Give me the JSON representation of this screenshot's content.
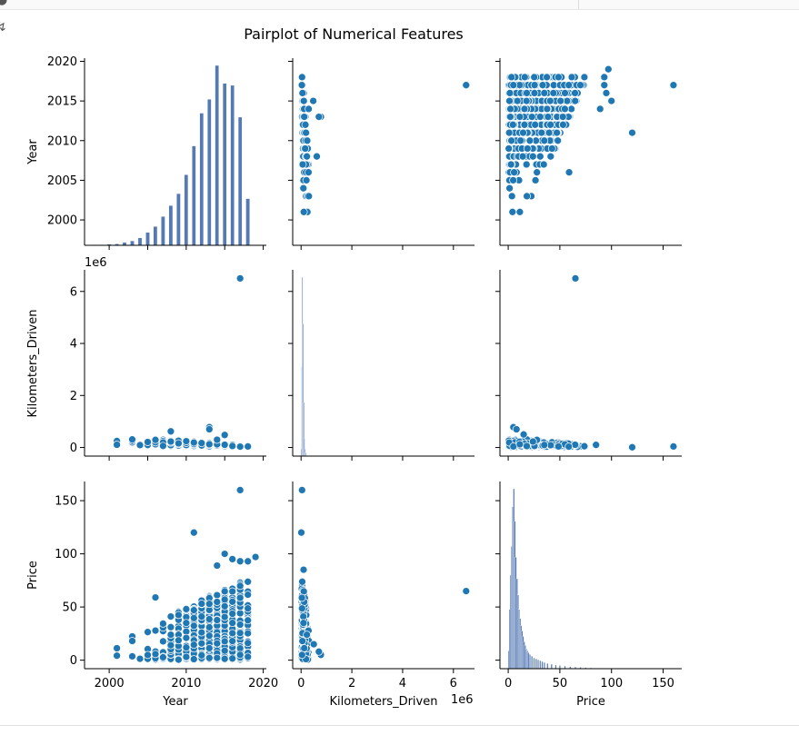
{
  "chart_data": {
    "type": "scatter",
    "title": "Pairplot of Numerical Features",
    "variables": [
      "Year",
      "Kilometers_Driven",
      "Price"
    ],
    "axis_labels": {
      "Year": "Year",
      "Kilometers_Driven": "Kilometers_Driven",
      "Price": "Price"
    },
    "ranges": {
      "Year": [
        1996.8,
        2020.4
      ],
      "Kilometers_Driven": [
        -330000,
        6830000
      ],
      "Price": [
        -8,
        168
      ]
    },
    "ticks": {
      "Year": [
        2000,
        2005,
        2010,
        2015,
        2020
      ],
      "Year_bottom": [
        2000,
        2010,
        2020
      ],
      "Kilometers_Driven": [
        0,
        2000000,
        4000000,
        6000000
      ],
      "Price": [
        0,
        50,
        100,
        150
      ]
    },
    "tick_labels": {
      "Year": [
        "2000",
        "2005",
        "2010",
        "2015",
        "2020"
      ],
      "Year_bottom": [
        "2000",
        "2010",
        "2020"
      ],
      "Kilometers_Driven": [
        "0",
        "2",
        "4",
        "6"
      ],
      "Price": [
        "0",
        "50",
        "100",
        "150"
      ]
    },
    "offset_text": "1e6",
    "color": "#1f77b4",
    "hist_color": "#4c72b0",
    "histograms": {
      "Year": {
        "bin_width": 0.5,
        "bins": [
          [
            1998,
            0.6
          ],
          [
            1999,
            0.7
          ],
          [
            2000,
            1.2
          ],
          [
            2001,
            1.5
          ],
          [
            2002,
            3.0
          ],
          [
            2003,
            4.5
          ],
          [
            2004,
            7.5
          ],
          [
            2005,
            13
          ],
          [
            2006,
            19
          ],
          [
            2007,
            29
          ],
          [
            2008,
            40
          ],
          [
            2009,
            52
          ],
          [
            2010,
            71
          ],
          [
            2011,
            100
          ],
          [
            2012,
            133
          ],
          [
            2013,
            147
          ],
          [
            2014,
            181
          ],
          [
            2015,
            163
          ],
          [
            2016,
            161
          ],
          [
            2017,
            129
          ],
          [
            2018,
            47
          ]
        ]
      },
      "Kilometers_Driven": {
        "bins": [
          [
            0,
            4
          ],
          [
            25000,
            50
          ],
          [
            50000,
            100
          ],
          [
            75000,
            74
          ],
          [
            100000,
            30
          ],
          [
            125000,
            10
          ],
          [
            150000,
            4
          ],
          [
            175000,
            2
          ]
        ]
      },
      "Price": {
        "bins": [
          [
            0.5,
            10
          ],
          [
            1.5,
            33
          ],
          [
            2.5,
            52
          ],
          [
            3.5,
            68
          ],
          [
            4.5,
            90
          ],
          [
            5.5,
            100
          ],
          [
            6.5,
            82
          ],
          [
            7.5,
            62
          ],
          [
            8.5,
            50
          ],
          [
            9.5,
            41
          ],
          [
            10.5,
            33
          ],
          [
            11.5,
            28
          ],
          [
            12.5,
            24
          ],
          [
            13.5,
            21
          ],
          [
            14.5,
            18
          ],
          [
            15.5,
            15
          ],
          [
            16.5,
            13
          ],
          [
            17.5,
            11
          ],
          [
            18.5,
            10
          ],
          [
            19.5,
            9
          ],
          [
            21,
            8
          ],
          [
            23,
            7
          ],
          [
            25,
            6
          ],
          [
            27,
            5.5
          ],
          [
            29,
            5
          ],
          [
            31,
            4.5
          ],
          [
            33,
            4
          ],
          [
            35,
            3.5
          ],
          [
            38,
            3
          ],
          [
            42,
            2.5
          ],
          [
            46,
            2
          ],
          [
            50,
            1.8
          ],
          [
            55,
            1.5
          ],
          [
            60,
            1.2
          ],
          [
            65,
            1
          ],
          [
            70,
            0.8
          ],
          [
            75,
            0.6
          ],
          [
            80,
            0.5
          ],
          [
            90,
            0.3
          ],
          [
            100,
            0.2
          ]
        ]
      }
    },
    "outliers": {
      "Year_Kilometers_Driven": [
        [
          2017,
          6500000
        ],
        [
          2008,
          620000
        ],
        [
          2013,
          780000
        ],
        [
          2013,
          700000
        ],
        [
          2015,
          480000
        ],
        [
          2014,
          300000
        ]
      ],
      "Year_Price": [
        [
          2017,
          160
        ],
        [
          2011,
          120
        ],
        [
          2006,
          59
        ],
        [
          2015,
          100
        ],
        [
          2016,
          95
        ],
        [
          2017,
          93
        ],
        [
          2019,
          97
        ],
        [
          2018,
          93
        ],
        [
          2014,
          89
        ]
      ],
      "Price_Kilometers_Driven": [
        [
          65,
          6500000
        ],
        [
          160,
          40000
        ],
        [
          120,
          10000
        ],
        [
          85,
          100000
        ],
        [
          5,
          780000
        ],
        [
          8,
          700000
        ],
        [
          15,
          500000
        ]
      ]
    }
  }
}
